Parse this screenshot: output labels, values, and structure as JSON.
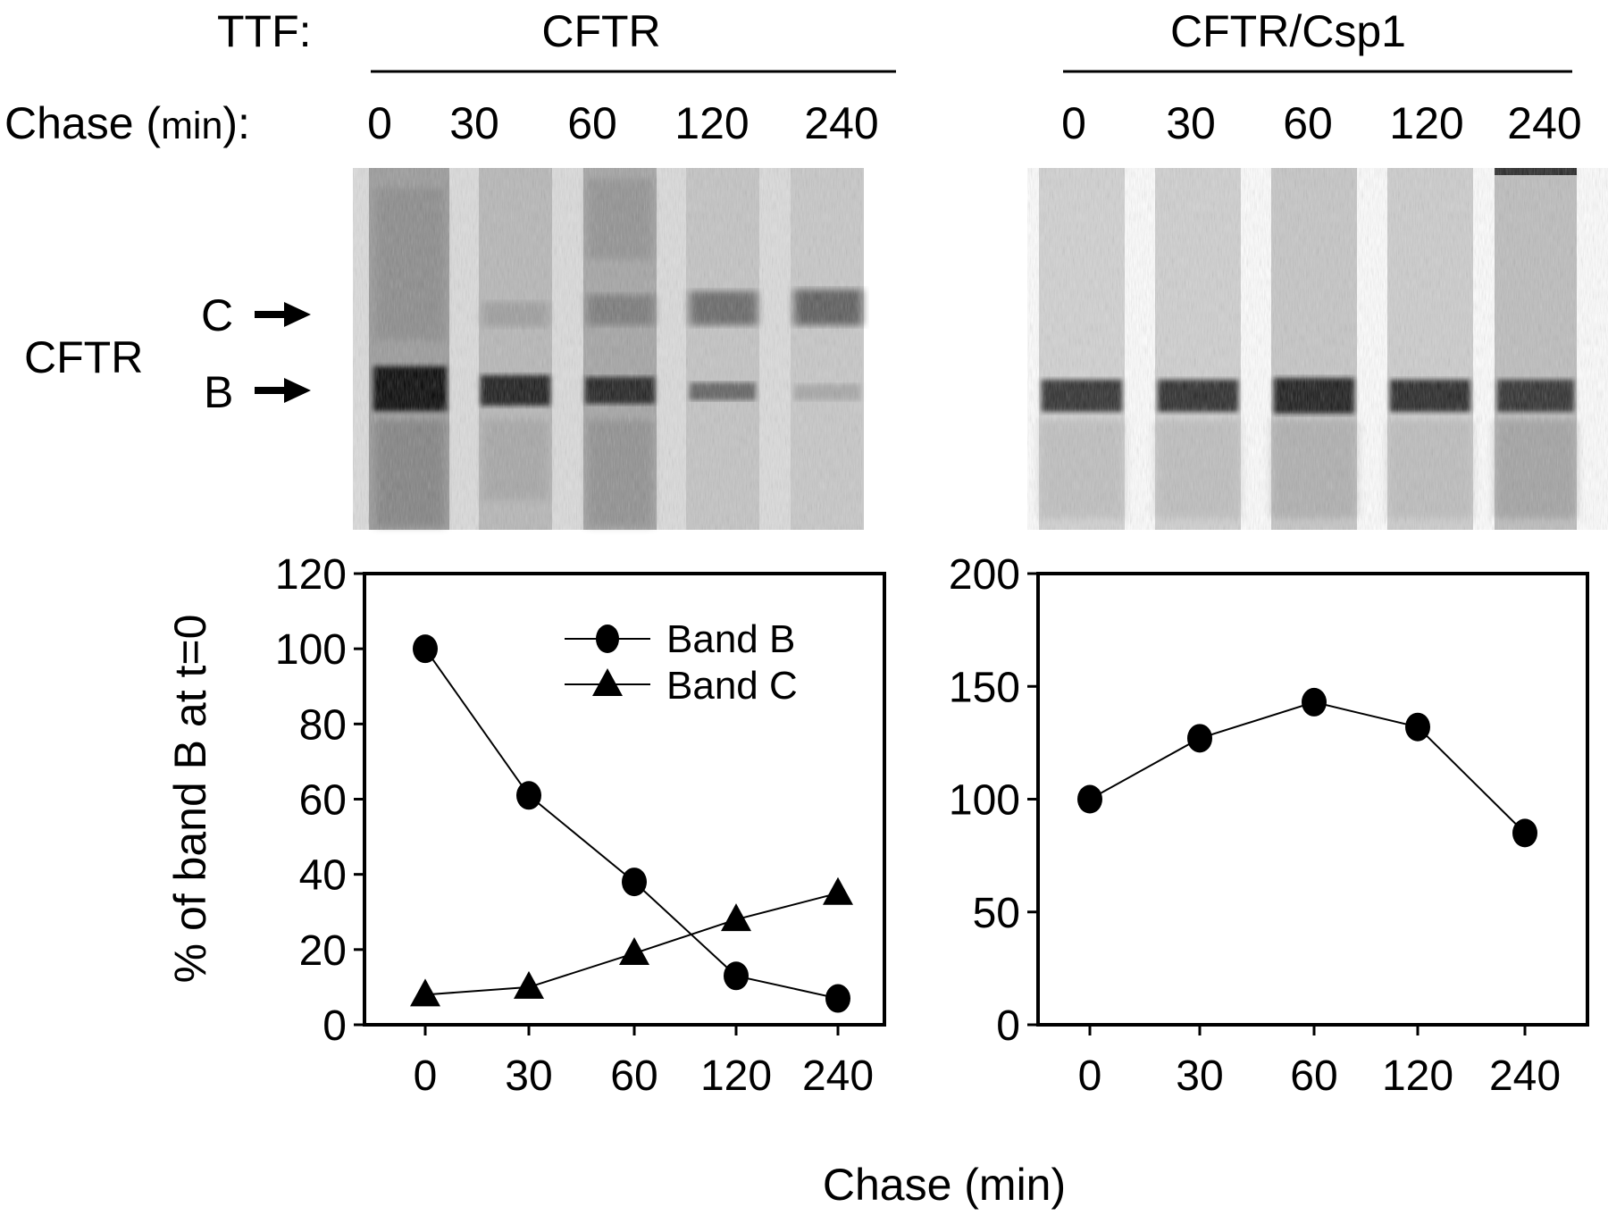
{
  "header": {
    "ttf_label": "TTF:",
    "group_left": "CFTR",
    "group_right": "CFTR/Csp1",
    "chase_label": "Chase (",
    "chase_unit": "min",
    "chase_close": "):",
    "timepoints": [
      "0",
      "30",
      "60",
      "120",
      "240"
    ]
  },
  "gel": {
    "protein_label": "CFTR",
    "band_c_label": "C",
    "band_b_label": "B"
  },
  "chart_data": [
    {
      "type": "line",
      "xlabel": "Chase (min)",
      "ylabel": "% of band B at t=0",
      "categories": [
        "0",
        "30",
        "60",
        "120",
        "240"
      ],
      "ylim": [
        0,
        120
      ],
      "yticks": [
        0,
        20,
        40,
        60,
        80,
        100,
        120
      ],
      "grid": false,
      "legend_position": "top-right",
      "series": [
        {
          "name": "Band B",
          "marker": "circle",
          "values": [
            100,
            61,
            38,
            13,
            7
          ]
        },
        {
          "name": "Band C",
          "marker": "triangle",
          "values": [
            8,
            10,
            19,
            28,
            35
          ]
        }
      ]
    },
    {
      "type": "line",
      "xlabel": "Chase (min)",
      "ylabel": "",
      "categories": [
        "0",
        "30",
        "60",
        "120",
        "240"
      ],
      "ylim": [
        0,
        200
      ],
      "yticks": [
        0,
        50,
        100,
        150,
        200
      ],
      "grid": false,
      "series": [
        {
          "marker": "circle",
          "values": [
            100,
            127,
            143,
            132,
            85
          ]
        }
      ]
    }
  ]
}
